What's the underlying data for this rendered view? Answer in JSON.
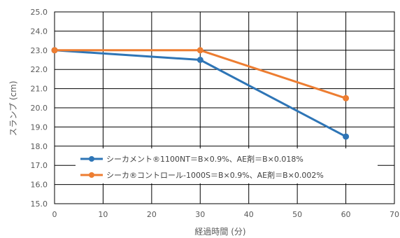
{
  "chart_data": {
    "type": "line",
    "title": "",
    "xlabel": "経過時間 (分)",
    "ylabel": "スランプ (cm)",
    "xlim": [
      0,
      70
    ],
    "ylim": [
      15.0,
      25.0
    ],
    "x_ticks": [
      "0",
      "10",
      "20",
      "30",
      "40",
      "50",
      "60",
      "70"
    ],
    "y_ticks": [
      "15.0",
      "16.0",
      "17.0",
      "18.0",
      "19.0",
      "20.0",
      "21.0",
      "22.0",
      "23.0",
      "24.0",
      "25.0"
    ],
    "grid": true,
    "legend_position": "bottom-left-inside",
    "series": [
      {
        "name": "シーカメント®1100NT＝B×0.9%、AE剤＝B×0.018%",
        "color": "#2E75B6",
        "points": [
          {
            "x": 0,
            "y": 23.0
          },
          {
            "x": 30,
            "y": 22.5
          },
          {
            "x": 60,
            "y": 18.5
          }
        ]
      },
      {
        "name": "シーカ®コントロール-1000S＝B×0.9%、AE剤＝B×0.002%",
        "color": "#ED7D31",
        "points": [
          {
            "x": 0,
            "y": 23.0
          },
          {
            "x": 30,
            "y": 23.0
          },
          {
            "x": 60,
            "y": 20.5
          }
        ]
      }
    ]
  }
}
